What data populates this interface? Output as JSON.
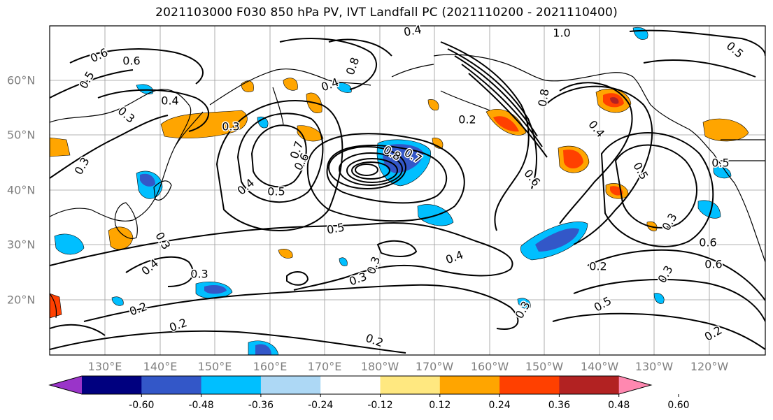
{
  "title": "2021103000 F030 850 hPa PV, IVT Landfall PC (2021110200 - 2021110400)",
  "x_ticks": [
    "130°E",
    "140°E",
    "150°E",
    "160°E",
    "170°E",
    "180°W",
    "170°W",
    "160°W",
    "150°W",
    "140°W",
    "130°W",
    "120°W"
  ],
  "y_ticks": [
    "60°N",
    "50°N",
    "40°N",
    "30°N",
    "20°N"
  ],
  "colorbar": {
    "colors": [
      "#9a34c9",
      "#00007f",
      "#3357c8",
      "#00bfff",
      "#add8f5",
      "#ffffff",
      "#ffe880",
      "#ffa500",
      "#ff4000",
      "#b22222",
      "#ff88b0"
    ],
    "labels": [
      "-0.60",
      "-0.48",
      "-0.36",
      "-0.24",
      "-0.12",
      "0.12",
      "0.24",
      "0.36",
      "0.48",
      "0.60"
    ]
  },
  "contour_labels": [
    "0.4",
    "1.0",
    "0.6",
    "0.6",
    "0.5",
    "0.8",
    "0.4",
    "0.4",
    "0.3",
    "0.3",
    "0.2",
    "0.8",
    "0.5",
    "0.4",
    "0.7",
    "0.6",
    "0.8",
    "0.5",
    "0.5",
    "0.7",
    "0.4",
    "0.3",
    "0.3",
    "0.6",
    "0.5",
    "0.6",
    "0.5",
    "0.4",
    "0.3",
    "0.2",
    "0.3",
    "0.3",
    "0.2",
    "0.4",
    "0.3",
    "0.2",
    "0.3",
    "0.5",
    "0.6",
    "0.3",
    "0.2",
    "0.2"
  ]
}
